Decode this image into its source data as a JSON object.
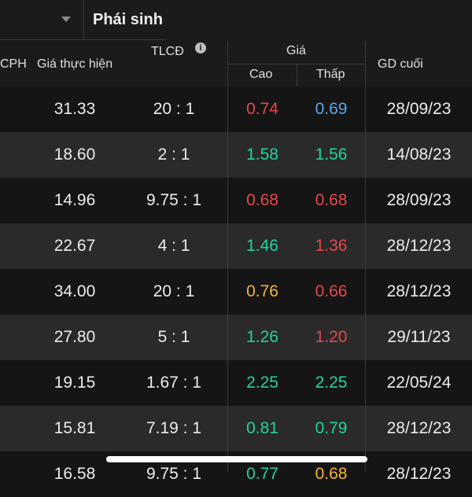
{
  "tab": {
    "title": "Phái sinh"
  },
  "header": {
    "col_partial": "CPH",
    "col_gia_thuc_hien": "Giá thực hiện",
    "col_tlcd": "TLCĐ",
    "col_gia": "Giá",
    "col_cao": "Cao",
    "col_thap": "Thấp",
    "col_gd_cuoi": "GD cuối"
  },
  "colors": {
    "red": "#e5484d",
    "green": "#22d3a0",
    "blue": "#5aa7e8",
    "yellow": "#f5b532"
  },
  "rows": [
    {
      "gia": "31.33",
      "tlcd": "20 : 1",
      "cao": "0.74",
      "cao_color": "#e5484d",
      "thap": "0.69",
      "thap_color": "#5aa7e8",
      "gd": "28/09/23"
    },
    {
      "gia": "18.60",
      "tlcd": "2 : 1",
      "cao": "1.58",
      "cao_color": "#22d3a0",
      "thap": "1.56",
      "thap_color": "#22d3a0",
      "gd": "14/08/23"
    },
    {
      "gia": "14.96",
      "tlcd": "9.75 : 1",
      "cao": "0.68",
      "cao_color": "#e5484d",
      "thap": "0.68",
      "thap_color": "#e5484d",
      "gd": "28/09/23"
    },
    {
      "gia": "22.67",
      "tlcd": "4 : 1",
      "cao": "1.46",
      "cao_color": "#22d3a0",
      "thap": "1.36",
      "thap_color": "#e5484d",
      "gd": "28/12/23"
    },
    {
      "gia": "34.00",
      "tlcd": "20 : 1",
      "cao": "0.76",
      "cao_color": "#f5b532",
      "thap": "0.66",
      "thap_color": "#e5484d",
      "gd": "28/12/23"
    },
    {
      "gia": "27.80",
      "tlcd": "5 : 1",
      "cao": "1.26",
      "cao_color": "#22d3a0",
      "thap": "1.20",
      "thap_color": "#e5484d",
      "gd": "29/11/23"
    },
    {
      "gia": "19.15",
      "tlcd": "1.67 : 1",
      "cao": "2.25",
      "cao_color": "#22d3a0",
      "thap": "2.25",
      "thap_color": "#22d3a0",
      "gd": "22/05/24"
    },
    {
      "gia": "15.81",
      "tlcd": "7.19 : 1",
      "cao": "0.81",
      "cao_color": "#22d3a0",
      "thap": "0.79",
      "thap_color": "#22d3a0",
      "gd": "28/12/23"
    },
    {
      "gia": "16.58",
      "tlcd": "9.75 : 1",
      "cao": "0.77",
      "cao_color": "#22d3a0",
      "thap": "0.68",
      "thap_color": "#f5b532",
      "gd": "28/12/23"
    }
  ]
}
